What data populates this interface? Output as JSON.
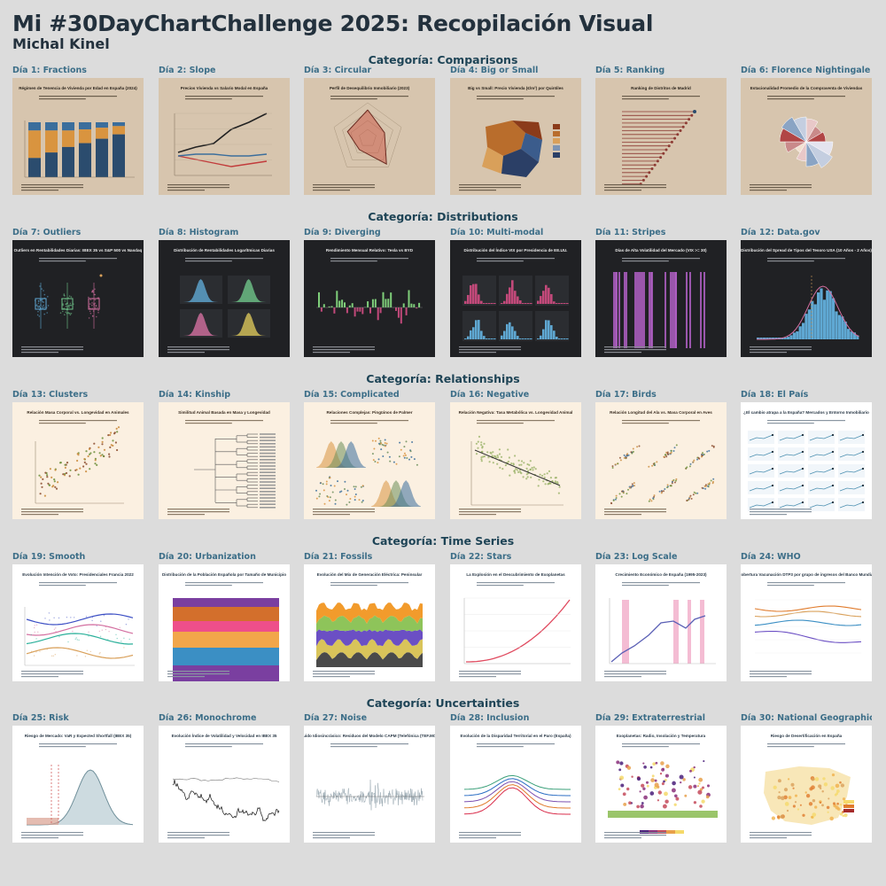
{
  "header": {
    "title": "Mi #30DayChartChallenge 2025: Recopilación Visual",
    "author": "Michal Kinel"
  },
  "sections": [
    {
      "title": "Categoría: Comparisons",
      "days": [
        {
          "label": "Día 1: Fractions",
          "theme": "beige",
          "kind": "stackedbar",
          "chart_title": "Régimen de Tenencia de Vivienda por Edad en España (2024)"
        },
        {
          "label": "Día 2: Slope",
          "theme": "beige",
          "kind": "slope",
          "chart_title": "Precios Vivienda vs Salario Modal en España"
        },
        {
          "label": "Día 3: Circular",
          "theme": "beige",
          "kind": "radar",
          "chart_title": "Perfil de Desequilibrio Inmobiliario (2023)"
        },
        {
          "label": "Día 4: Big or Small",
          "theme": "beige",
          "kind": "map",
          "chart_title": "Big vs Small: Precio Vivienda (€/m²) por Quintiles"
        },
        {
          "label": "Día 5: Ranking",
          "theme": "beige",
          "kind": "lollipop",
          "chart_title": "Ranking de Distritos de Madrid"
        },
        {
          "label": "Día 6: Florence Nightingale",
          "theme": "beige",
          "kind": "rose",
          "chart_title": "Estacionalidad Promedio de la Compraventa de Viviendas"
        }
      ]
    },
    {
      "title": "Categoría: Distributions",
      "days": [
        {
          "label": "Día 7: Outliers",
          "theme": "dark",
          "kind": "box",
          "chart_title": "Outliers en Rentabilidades Diarias: IBEX 35 vs S&P 500 vs Nasdaq"
        },
        {
          "label": "Día 8: Histogram",
          "theme": "dark",
          "kind": "facethist",
          "chart_title": "Distribución de Rentabilidades Logarítmicas Diarias"
        },
        {
          "label": "Día 9: Diverging",
          "theme": "dark",
          "kind": "diverging",
          "chart_title": "Rendimiento Mensual Relativo: Tesla vs BYD"
        },
        {
          "label": "Día 10: Multi-modal",
          "theme": "dark",
          "kind": "multimodal",
          "chart_title": "Distribución del Índice VIX por Presidencia de EE.UU."
        },
        {
          "label": "Día 11: Stripes",
          "theme": "dark",
          "kind": "stripes",
          "chart_title": "Días de Alta Volatilidad del Mercado (VIX >= 30)"
        },
        {
          "label": "Día 12: Data.gov",
          "theme": "dark",
          "kind": "hist",
          "chart_title": "Distribución del Spread de Tipos del Tesoro USA (10 Años - 2 Años)"
        }
      ]
    },
    {
      "title": "Categoría: Relationships",
      "days": [
        {
          "label": "Día 13: Clusters",
          "theme": "cream",
          "kind": "scatter",
          "chart_title": "Relación Masa Corporal vs. Longevidad en Animales"
        },
        {
          "label": "Día 14: Kinship",
          "theme": "cream",
          "kind": "dendro",
          "chart_title": "Similitud Animal Basada en Masa y Longevidad"
        },
        {
          "label": "Día 15: Complicated",
          "theme": "cream",
          "kind": "pairs",
          "chart_title": "Relaciones Complejas: Pingüinos de Palmer"
        },
        {
          "label": "Día 16: Negative",
          "theme": "cream",
          "kind": "negative",
          "chart_title": "Relación Negativa: Tasa Metabólica vs. Longevidad Animal"
        },
        {
          "label": "Día 17: Birds",
          "theme": "cream",
          "kind": "birds",
          "chart_title": "Relación Longitud del Ala vs. Masa Corporal en Aves"
        },
        {
          "label": "Día 18: El País",
          "theme": "white",
          "kind": "smallmult",
          "chart_title": "¿El cambio atrapa a la España? Mercados y Entorno Inmobiliario"
        }
      ]
    },
    {
      "title": "Categoría: Time Series",
      "days": [
        {
          "label": "Día 19: Smooth",
          "theme": "white",
          "kind": "smooth",
          "chart_title": "Evolución Intención de Voto: Presidenciales Francia 2022"
        },
        {
          "label": "Día 20: Urbanization",
          "theme": "white",
          "kind": "streamfill",
          "chart_title": "Distribución de la Población Española por Tamaño de Municipio"
        },
        {
          "label": "Día 21: Fossils",
          "theme": "white",
          "kind": "fossil",
          "chart_title": "Evolución del Mix de Generación Eléctrica: Peninsular"
        },
        {
          "label": "Día 22: Stars",
          "theme": "white",
          "kind": "exponential",
          "chart_title": "La Explosión en el Descubrimiento de Exoplanetas"
        },
        {
          "label": "Día 23: Log Scale",
          "theme": "white",
          "kind": "logscale",
          "chart_title": "Crecimiento Económico de España (1995-2023)"
        },
        {
          "label": "Día 24: WHO",
          "theme": "white",
          "kind": "who",
          "chart_title": "Cobertura Vacunación DTP3 por grupo de ingresos del Banco Mundial"
        }
      ]
    },
    {
      "title": "Categoría: Uncertainties",
      "days": [
        {
          "label": "Día 25: Risk",
          "theme": "white",
          "kind": "risk",
          "chart_title": "Riesgo de Mercado: VaR y Expected Shortfall (IBEX 35)"
        },
        {
          "label": "Día 26: Monochrome",
          "theme": "white",
          "kind": "mono",
          "chart_title": "Evolución Índice de Volatilidad y Velocidad en IBEX 35"
        },
        {
          "label": "Día 27: Noise",
          "theme": "white",
          "kind": "noise",
          "chart_title": "Ruido Idiosincrásico: Residuos del Modelo CAPM (Telefónica (TEF.MC))"
        },
        {
          "label": "Día 28: Inclusion",
          "theme": "white",
          "kind": "inclusion",
          "chart_title": "Evolución de la Disparidad Territorial en el Paro (España)"
        },
        {
          "label": "Día 29: Extraterrestrial",
          "theme": "white",
          "kind": "exo",
          "chart_title": "Exoplanetas: Radio, Insolación y Temperatura"
        },
        {
          "label": "Día 30: National Geographic",
          "theme": "white",
          "kind": "spainmap",
          "chart_title": "Riesgo de Desertificación en España"
        }
      ]
    }
  ],
  "theme_colors": {
    "beige": "#d7c5ae",
    "dark": "#202124",
    "cream": "#fbf0e1",
    "white": "#ffffff"
  }
}
